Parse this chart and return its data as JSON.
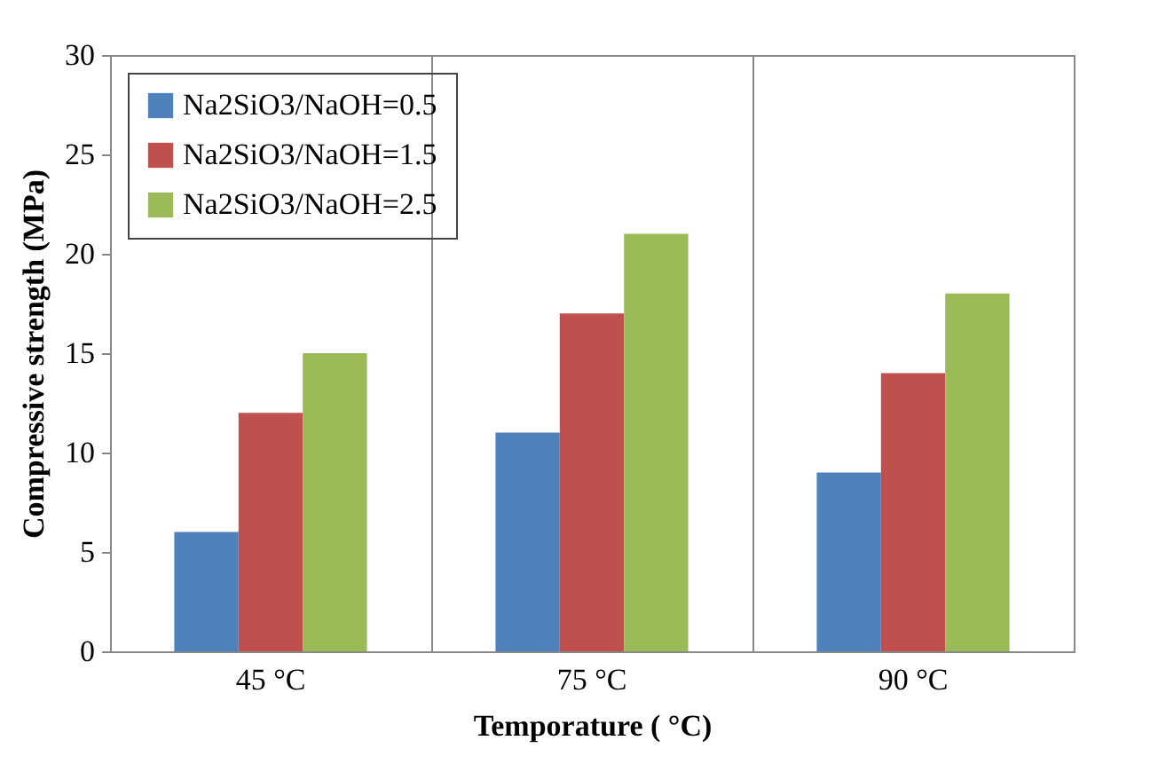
{
  "chart_data": {
    "type": "bar",
    "xlabel": "Temporature  ( °C)",
    "ylabel": "Compressive strength (MPa)",
    "categories": [
      "45 °C",
      "75 °C",
      "90 °C"
    ],
    "series": [
      {
        "name": "Na2SiO3/NaOH=0.5",
        "color": "#4f81bd",
        "values": [
          6,
          11,
          9
        ]
      },
      {
        "name": "Na2SiO3/NaOH=1.5",
        "color": "#c0504d",
        "values": [
          12,
          17,
          14
        ]
      },
      {
        "name": "Na2SiO3/NaOH=2.5",
        "color": "#9bbb59",
        "values": [
          15,
          21,
          18
        ]
      }
    ],
    "ylim": [
      0,
      30
    ],
    "yticks": [
      0,
      5,
      10,
      15,
      20,
      25,
      30
    ],
    "grid": "x",
    "legend": "top left"
  }
}
